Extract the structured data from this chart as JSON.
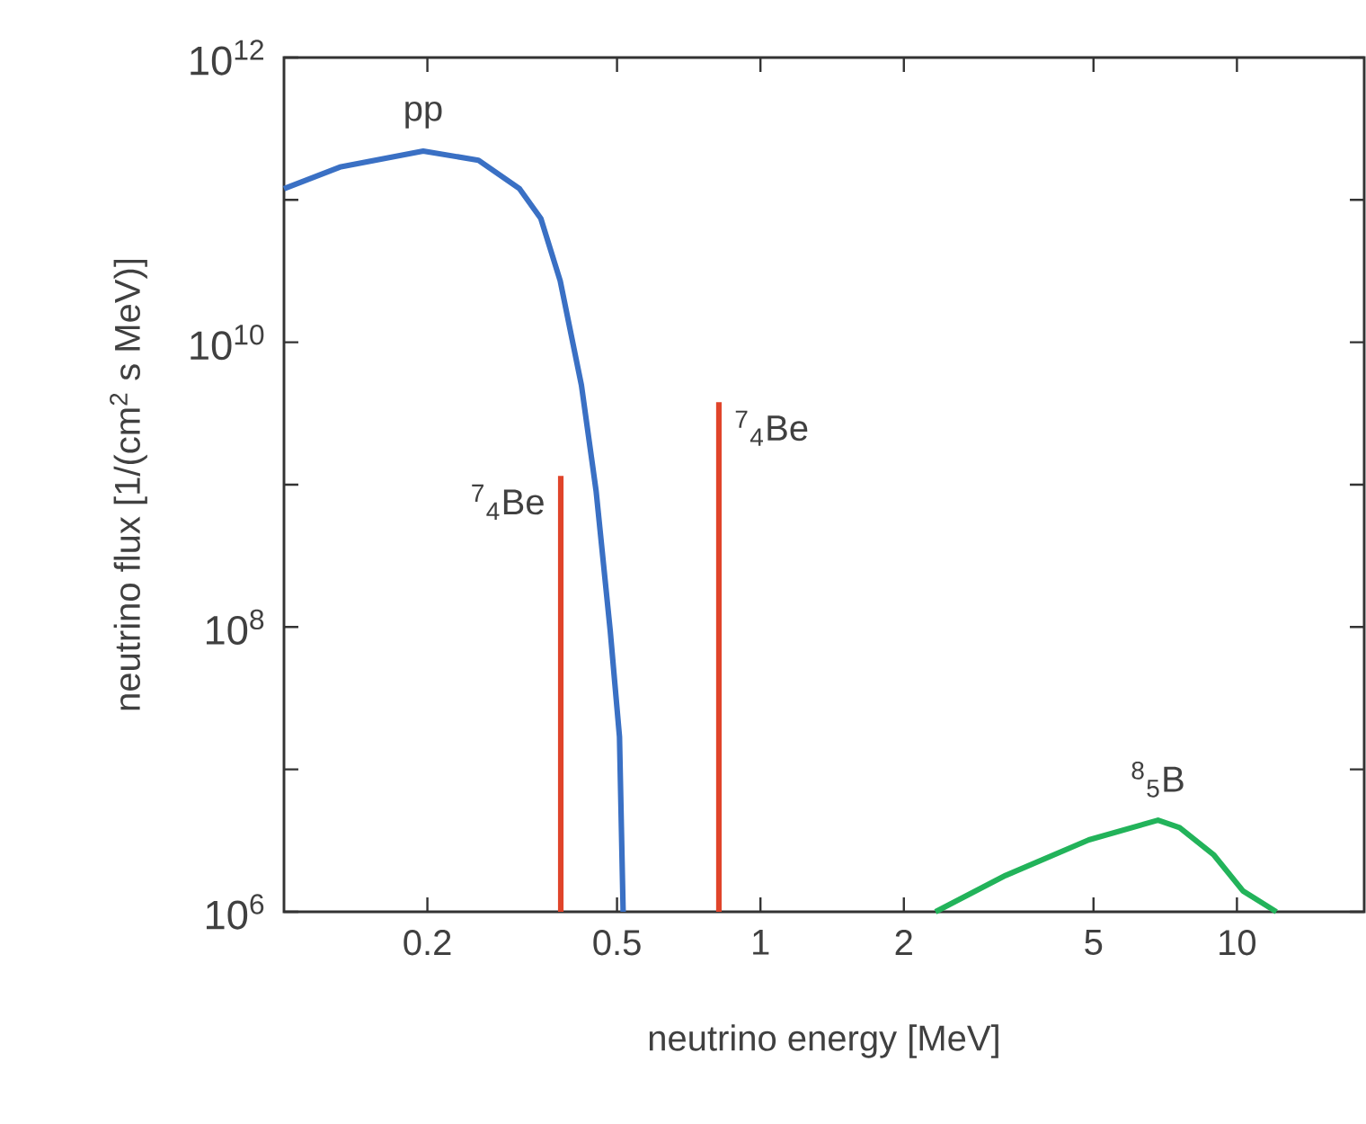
{
  "chart_data": {
    "type": "line",
    "xlabel": "neutrino energy [MeV]",
    "ylabel": "neutrino flux [1/(cm$^{2}$ s MeV)]",
    "log": "xy",
    "xlim": [
      0.1,
      18.5
    ],
    "ylim": [
      1000000.0,
      1000000000000.0
    ],
    "xticks": [
      0.2,
      0.5,
      1,
      2,
      5,
      10
    ],
    "yticks": [
      {
        "value": 1000000.0,
        "label": "10$^{6}$"
      },
      {
        "value": 10000000.0,
        "label": null
      },
      {
        "value": 100000000.0,
        "label": "10$^{8}$"
      },
      {
        "value": 1000000000.0,
        "label": null
      },
      {
        "value": 10000000000.0,
        "label": "10$^{10}$"
      },
      {
        "value": 100000000000.0,
        "label": null
      },
      {
        "value": 1000000000000.0,
        "label": "10$^{12}$"
      }
    ],
    "series": [
      {
        "name": "pp",
        "color": "#3a70c4",
        "x": [
          0.1,
          0.131,
          0.196,
          0.256,
          0.312,
          0.346,
          0.38,
          0.421,
          0.452,
          0.484,
          0.506,
          0.515
        ],
        "values": [
          120000000000.0,
          170000000000.0,
          220000000000.0,
          190000000000.0,
          120000000000.0,
          74000000000.0,
          27000000000.0,
          5000000000.0,
          900000000.0,
          93000000.0,
          17000000.0,
          1000000.0
        ]
      },
      {
        "name": "$^{7}$$_{4}$Be",
        "color": "#e0442a",
        "x": [
          0.381,
          0.381
        ],
        "values": [
          1000000.0,
          1150000000.0
        ]
      },
      {
        "name": "$^{7}$$_{4}$Be",
        "color": "#e0442a",
        "x": [
          0.818,
          0.818
        ],
        "values": [
          1000000.0,
          3800000000.0
        ]
      },
      {
        "name": "$^{8}$$_{5}$B",
        "color": "#22b35a",
        "x": [
          2.33,
          3.27,
          4.89,
          6.83,
          7.58,
          8.95,
          10.3,
          12.1
        ],
        "values": [
          1000000.0,
          1800000.0,
          3200000.0,
          4400000.0,
          3900000.0,
          2500000.0,
          1400000.0,
          1000000.0
        ]
      }
    ]
  }
}
